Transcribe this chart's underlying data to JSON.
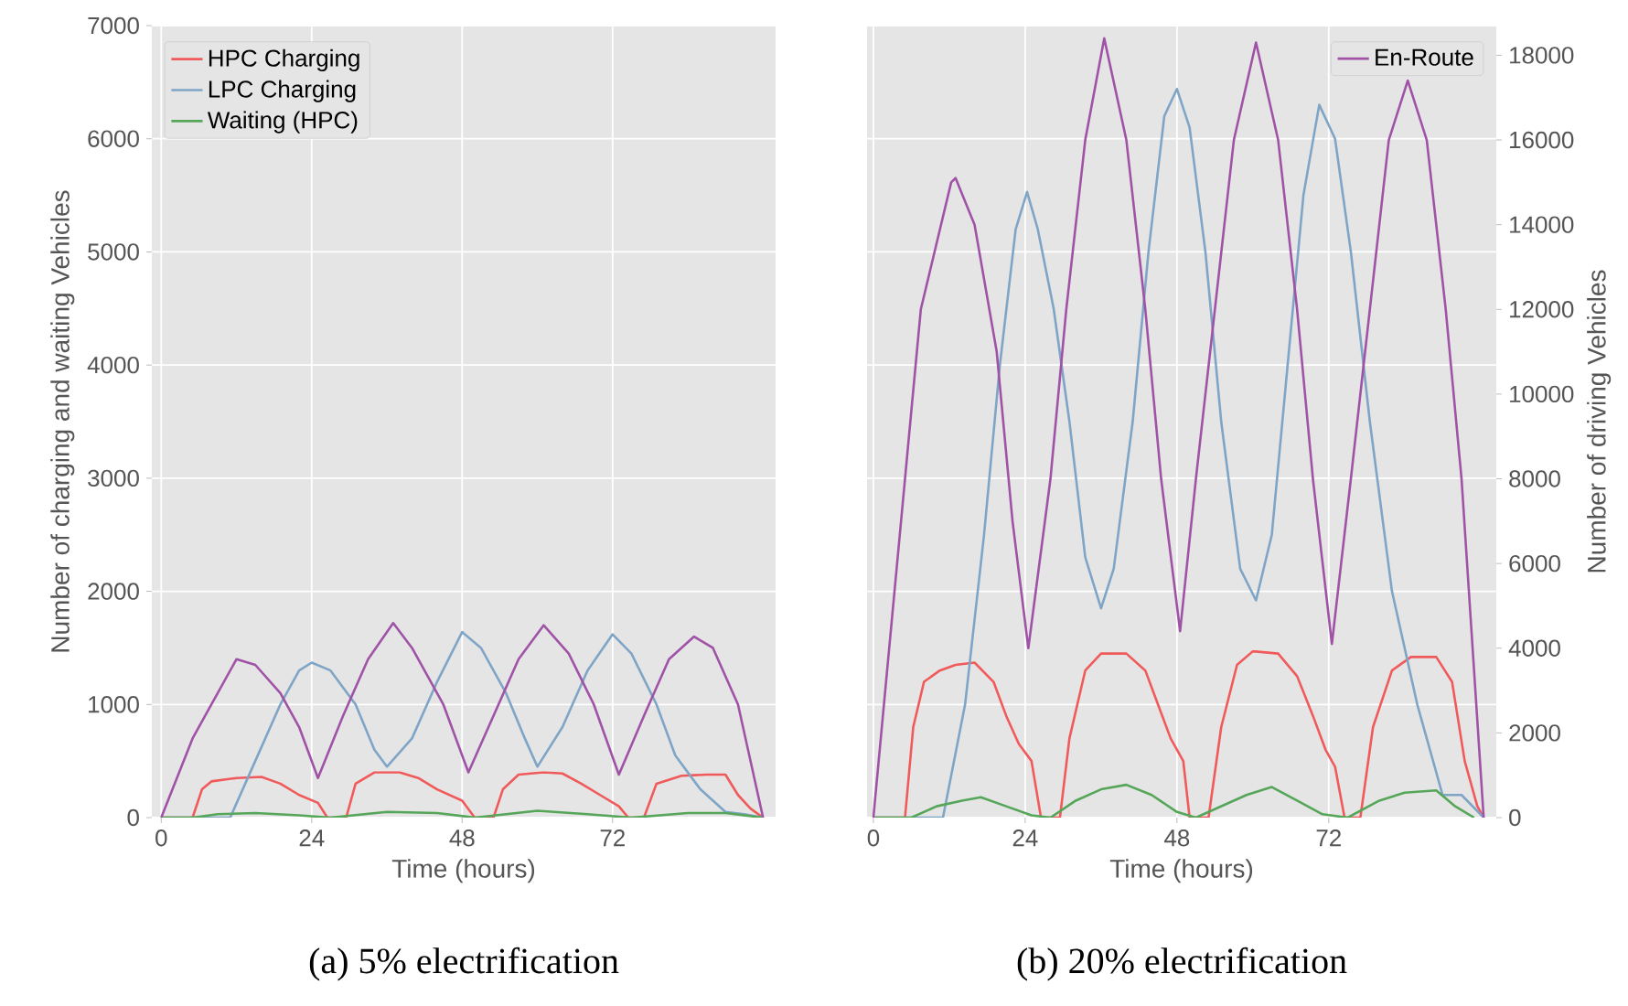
{
  "chart_data": [
    {
      "type": "line",
      "xlabel": "Time (hours)",
      "ylabel": "Number of charging and waiting Vehicles",
      "xlim": [
        -1.5,
        98
      ],
      "xticks": [
        0,
        24,
        48,
        72
      ],
      "ylim": [
        0,
        7000
      ],
      "yticks": [
        0,
        1000,
        2000,
        3000,
        4000,
        5000,
        6000,
        7000
      ],
      "grid": true,
      "legend": "top left",
      "annotations": [
        "(a) 5% electrification"
      ],
      "series": [
        {
          "name": "HPC Charging",
          "color": "#f05a5b",
          "x": [
            0,
            5,
            6.5,
            8,
            12,
            16,
            19,
            22,
            25,
            26.5,
            29.5,
            31,
            34,
            38,
            41,
            44,
            48,
            50,
            53,
            54.5,
            57,
            61,
            64,
            67,
            70,
            73,
            74.5,
            77,
            79,
            83,
            87,
            90,
            92,
            94,
            96
          ],
          "values": [
            0,
            0,
            250,
            320,
            350,
            360,
            300,
            200,
            130,
            0,
            0,
            300,
            400,
            400,
            350,
            250,
            150,
            0,
            0,
            250,
            380,
            400,
            390,
            300,
            200,
            100,
            0,
            0,
            300,
            370,
            380,
            380,
            200,
            80,
            0
          ]
        },
        {
          "name": "LPC Charging",
          "color": "#7fa5c6",
          "x": [
            0,
            11,
            15,
            19,
            22,
            24,
            27,
            31,
            34,
            36,
            40,
            44,
            48,
            51,
            55,
            58,
            60,
            64,
            68,
            72,
            75,
            79,
            82,
            86,
            90,
            93,
            96
          ],
          "values": [
            0,
            0,
            500,
            1000,
            1300,
            1370,
            1300,
            1000,
            600,
            450,
            700,
            1200,
            1640,
            1500,
            1100,
            700,
            450,
            800,
            1300,
            1620,
            1450,
            1000,
            550,
            250,
            50,
            30,
            0
          ]
        },
        {
          "name": "Waiting (HPC)",
          "color": "#55a659",
          "x": [
            0,
            5,
            9,
            15,
            22,
            27,
            36,
            44,
            50,
            60,
            68,
            75,
            84,
            90,
            96
          ],
          "values": [
            0,
            0,
            30,
            40,
            20,
            0,
            50,
            40,
            0,
            60,
            30,
            0,
            40,
            40,
            0
          ]
        },
        {
          "color": "#a053a6",
          "x": [
            0,
            5,
            12,
            15,
            19,
            22,
            25,
            29,
            33,
            37,
            40,
            45,
            49,
            53,
            57,
            61,
            65,
            69,
            73,
            77,
            81,
            85,
            88,
            92,
            96
          ],
          "values": [
            0,
            700,
            1400,
            1350,
            1100,
            800,
            350,
            900,
            1400,
            1720,
            1500,
            1000,
            400,
            900,
            1400,
            1700,
            1450,
            1000,
            380,
            900,
            1400,
            1600,
            1500,
            1000,
            0
          ]
        }
      ]
    },
    {
      "type": "line",
      "xlabel": "Time (hours)",
      "y2label": "Number of driving Vehicles",
      "xlim": [
        -1,
        98.5
      ],
      "xticks": [
        0,
        24,
        48,
        72
      ],
      "ylim": [
        0,
        7000
      ],
      "y2lim": [
        0,
        18700
      ],
      "y2ticks": [
        0,
        2000,
        4000,
        6000,
        8000,
        10000,
        12000,
        14000,
        16000,
        18000
      ],
      "grid": true,
      "legend": "top right",
      "annotations": [
        "(b) 20% electrification"
      ],
      "series": [
        {
          "color": "#f05a5b",
          "x": [
            0,
            5,
            6.3,
            8,
            10.5,
            13,
            16,
            19,
            21,
            23,
            25,
            26.5,
            29.5,
            31,
            33.5,
            36,
            40,
            43,
            45,
            47,
            49,
            50,
            53,
            55,
            57.5,
            60,
            64,
            67,
            69.5,
            71.5,
            73,
            74.5,
            77,
            79,
            82,
            85,
            89,
            91.5,
            93.5,
            95.5,
            96.5
          ],
          "values": [
            0,
            0,
            800,
            1200,
            1300,
            1350,
            1370,
            1200,
            900,
            650,
            500,
            0,
            0,
            700,
            1300,
            1450,
            1450,
            1300,
            1000,
            700,
            500,
            0,
            0,
            800,
            1350,
            1470,
            1450,
            1250,
            900,
            600,
            450,
            0,
            0,
            800,
            1300,
            1420,
            1420,
            1200,
            500,
            100,
            0
          ]
        },
        {
          "color": "#7fa5c6",
          "x": [
            0,
            11,
            14.5,
            17.5,
            20,
            22.5,
            24.3,
            26,
            28.5,
            31,
            33.5,
            36,
            38,
            41,
            43.5,
            46,
            48,
            50,
            52.5,
            55,
            58,
            60.5,
            63,
            65.5,
            68,
            70.5,
            73,
            75.5,
            78.5,
            82,
            86,
            88.5,
            90,
            93,
            96.5
          ],
          "values": [
            0,
            0,
            1000,
            2500,
            4000,
            5200,
            5530,
            5200,
            4500,
            3500,
            2300,
            1850,
            2200,
            3500,
            5000,
            6200,
            6440,
            6100,
            5000,
            3500,
            2200,
            1920,
            2500,
            4000,
            5500,
            6300,
            6000,
            5000,
            3500,
            2000,
            1000,
            500,
            200,
            200,
            0
          ]
        },
        {
          "color": "#55a659",
          "x": [
            0,
            6,
            10,
            14,
            17,
            21,
            25,
            28,
            32,
            36,
            40,
            44,
            48,
            51,
            55,
            59,
            63,
            67,
            71,
            75,
            80,
            84,
            89,
            92,
            95
          ],
          "values": [
            0,
            0,
            100,
            150,
            180,
            100,
            20,
            0,
            150,
            250,
            290,
            200,
            50,
            0,
            100,
            200,
            270,
            150,
            30,
            0,
            150,
            220,
            240,
            100,
            0
          ]
        },
        {
          "name": "En-Route",
          "color": "#a053a6",
          "axis": "y2",
          "x": [
            0,
            5,
            7.5,
            12.3,
            13,
            16,
            19.5,
            22,
            24.5,
            28,
            30.5,
            33.5,
            36.5,
            40,
            43,
            45.5,
            48.5,
            51,
            54,
            57,
            60.5,
            64,
            67,
            69.5,
            72.5,
            75.5,
            78.5,
            81.5,
            84.5,
            87.5,
            90.5,
            93,
            96.5
          ],
          "values": [
            0,
            8000,
            12000,
            15000,
            15100,
            14000,
            11000,
            7000,
            4000,
            8000,
            12000,
            16000,
            18400,
            16000,
            12000,
            8000,
            4400,
            8000,
            12000,
            16000,
            18300,
            16000,
            12000,
            8000,
            4100,
            8000,
            12000,
            16000,
            17400,
            16000,
            12000,
            8000,
            0
          ]
        }
      ]
    }
  ]
}
